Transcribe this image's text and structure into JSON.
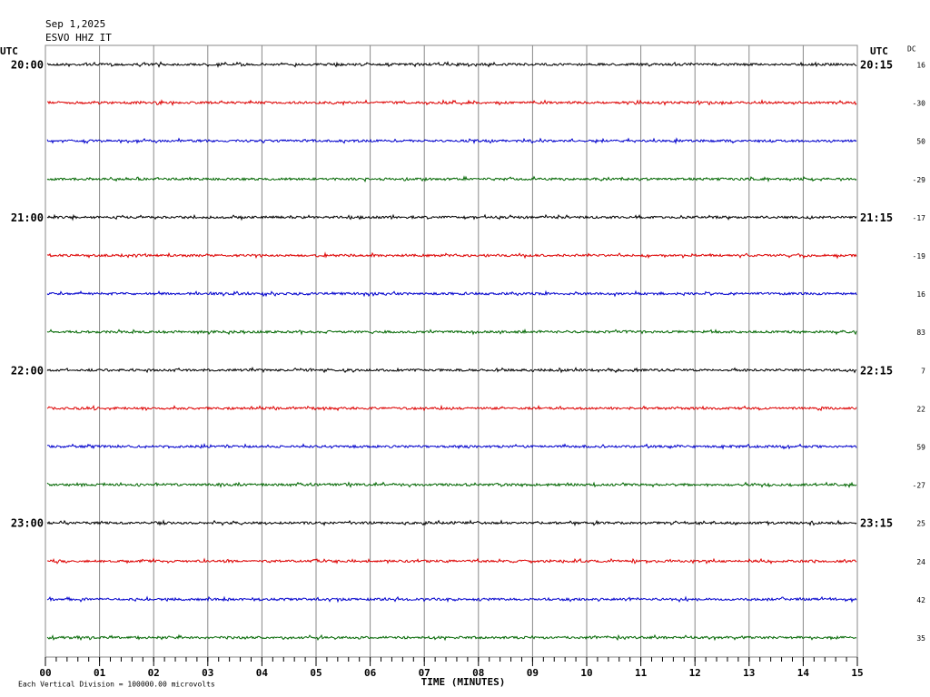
{
  "chart_data": {
    "type": "helicorder",
    "title": "Sep 1,2025",
    "subtitle": "ESVO HHZ IT",
    "left_axis_title": "UTC",
    "right_axis_title": "UTC",
    "dc_title": "DC",
    "xlabel": "TIME (MINUTES)",
    "footnote": "Each Vertical Division = 100000.00 microvolts",
    "xlim": [
      0,
      15
    ],
    "xticks": [
      {
        "value": 0,
        "label": "00"
      },
      {
        "value": 1,
        "label": "01"
      },
      {
        "value": 2,
        "label": "02"
      },
      {
        "value": 3,
        "label": "03"
      },
      {
        "value": 4,
        "label": "04"
      },
      {
        "value": 5,
        "label": "05"
      },
      {
        "value": 6,
        "label": "06"
      },
      {
        "value": 7,
        "label": "07"
      },
      {
        "value": 8,
        "label": "08"
      },
      {
        "value": 9,
        "label": "09"
      },
      {
        "value": 10,
        "label": "10"
      },
      {
        "value": 11,
        "label": "11"
      },
      {
        "value": 12,
        "label": "12"
      },
      {
        "value": 13,
        "label": "13"
      },
      {
        "value": 14,
        "label": "14"
      },
      {
        "value": 15,
        "label": "15"
      }
    ],
    "colors": [
      "#000000",
      "#dd0000",
      "#0000cc",
      "#006600"
    ],
    "left_labels": [
      "20:00",
      null,
      null,
      null,
      "21:00",
      null,
      null,
      null,
      "22:00",
      null,
      null,
      null,
      "23:00",
      null,
      null,
      null
    ],
    "right_labels": [
      "20:15",
      null,
      null,
      null,
      "21:15",
      null,
      null,
      null,
      "22:15",
      null,
      null,
      null,
      "23:15",
      null,
      null,
      null
    ],
    "dc": [
      16,
      -30,
      50,
      -29,
      -17,
      -19,
      16,
      83,
      7,
      22,
      59,
      -27,
      25,
      24,
      42,
      35
    ]
  }
}
